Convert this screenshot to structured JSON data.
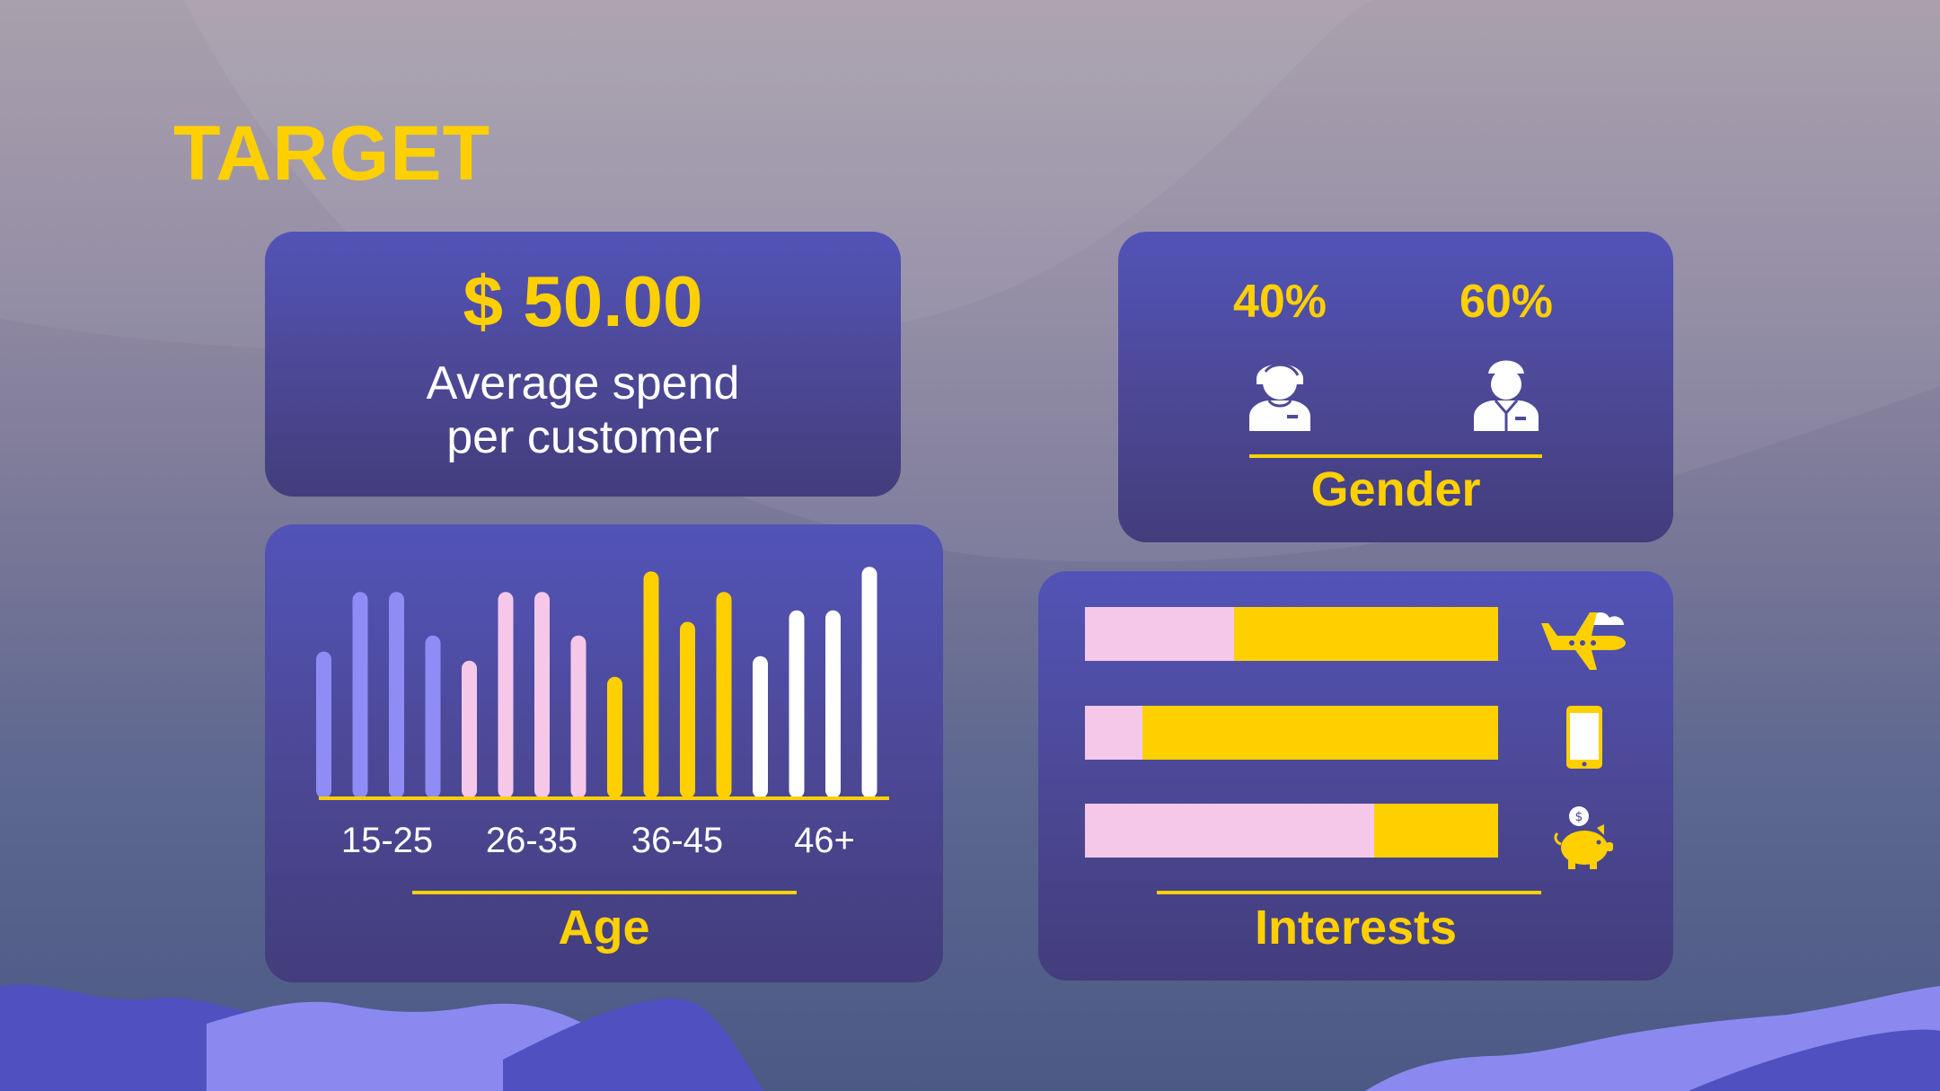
{
  "title": "TARGET",
  "spend": {
    "value": "$ 50.00",
    "label_line1": "Average spend",
    "label_line2": "per customer"
  },
  "gender": {
    "female_percent": "40%",
    "male_percent": "60%",
    "label": "Gender",
    "icons": [
      "female-person-icon",
      "male-person-icon"
    ]
  },
  "age": {
    "label": "Age",
    "chart_data": {
      "type": "bar",
      "categories": [
        "15-25",
        "26-35",
        "36-45",
        "46+"
      ],
      "series": [
        {
          "color": "#8f8cf5",
          "values": [
            6.4,
            9.0,
            9.0,
            7.1
          ]
        },
        {
          "color": "#f5c8ea",
          "values": [
            6.0,
            9.0,
            9.0,
            7.1
          ]
        },
        {
          "color": "#ffd000",
          "values": [
            5.3,
            9.9,
            7.7,
            9.0
          ]
        },
        {
          "color": "#ffffff",
          "values": [
            6.2,
            8.2,
            8.2,
            10.1
          ]
        }
      ],
      "ylim": [
        0,
        10.5
      ]
    }
  },
  "interests": {
    "label": "Interests",
    "chart_data": {
      "type": "bar",
      "categories": [
        "travel",
        "mobile",
        "savings"
      ],
      "series": [
        {
          "color": "#f5c8ea",
          "values": [
            36,
            14,
            70
          ]
        },
        {
          "color": "#ffd000",
          "values": [
            64,
            86,
            30
          ]
        }
      ]
    },
    "icons": [
      "airplane-icon",
      "smartphone-icon",
      "piggy-bank-icon"
    ]
  },
  "colors": {
    "accent": "#ffd000",
    "card": "#4d4a9a",
    "pink": "#f5c8ea",
    "lavender": "#8f8cf5",
    "white": "#ffffff"
  }
}
